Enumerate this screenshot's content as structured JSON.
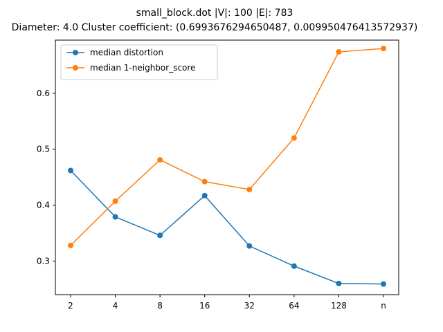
{
  "chart_data": {
    "type": "line",
    "title_line1": "small_block.dot |V|: 100 |E|: 783",
    "title_line2": "Diameter: 4.0 Cluster coefficient: (0.6993676294650487, 0.009950476413572937)",
    "xlabel": "",
    "ylabel": "",
    "categories": [
      "2",
      "4",
      "8",
      "16",
      "32",
      "64",
      "128",
      "n"
    ],
    "ylim": [
      0.24,
      0.695
    ],
    "yticks": [
      "0.3",
      "0.4",
      "0.5",
      "0.6"
    ],
    "grid": false,
    "legend_position": "top-left",
    "series": [
      {
        "name": "median distortion",
        "color": "#1f77b4",
        "values": [
          0.462,
          0.379,
          0.346,
          0.417,
          0.327,
          0.291,
          0.26,
          0.259
        ]
      },
      {
        "name": "median 1-neighbor_score",
        "color": "#ff7f0e",
        "values": [
          0.328,
          0.407,
          0.481,
          0.442,
          0.428,
          0.52,
          0.674,
          0.68
        ]
      }
    ]
  }
}
